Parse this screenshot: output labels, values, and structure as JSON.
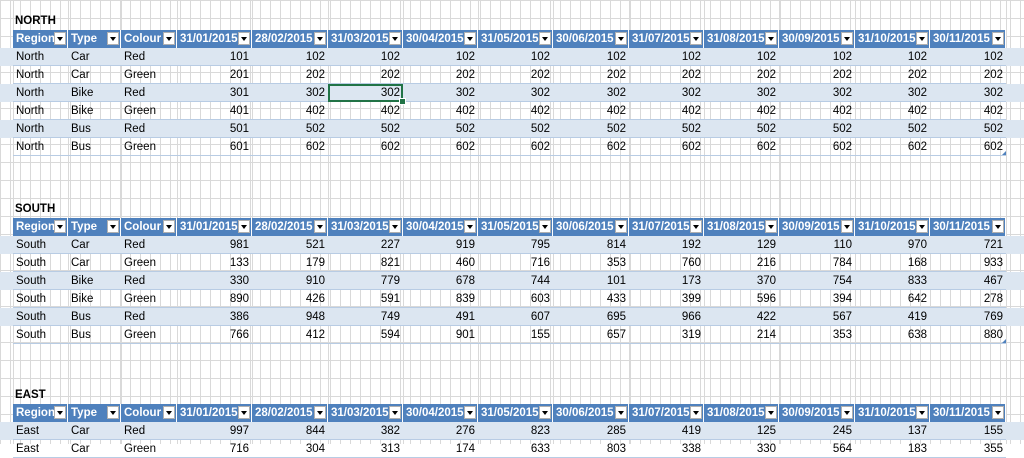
{
  "columns": {
    "region": "Region",
    "type": "Type",
    "colour": "Colour",
    "dates": [
      "31/01/2015",
      "28/02/2015",
      "31/03/2015",
      "30/04/2015",
      "31/05/2015",
      "30/06/2015",
      "31/07/2015",
      "31/08/2015",
      "30/09/2015",
      "31/10/2015",
      "30/11/2015"
    ]
  },
  "tables": [
    {
      "title": "NORTH",
      "rows": [
        {
          "region": "North",
          "type": "Car",
          "colour": "Red",
          "values": [
            101,
            102,
            102,
            102,
            102,
            102,
            102,
            102,
            102,
            102,
            102
          ]
        },
        {
          "region": "North",
          "type": "Car",
          "colour": "Green",
          "values": [
            201,
            202,
            202,
            202,
            202,
            202,
            202,
            202,
            202,
            202,
            202
          ]
        },
        {
          "region": "North",
          "type": "Bike",
          "colour": "Red",
          "values": [
            301,
            302,
            302,
            302,
            302,
            302,
            302,
            302,
            302,
            302,
            302
          ]
        },
        {
          "region": "North",
          "type": "Bike",
          "colour": "Green",
          "values": [
            401,
            402,
            402,
            402,
            402,
            402,
            402,
            402,
            402,
            402,
            402
          ]
        },
        {
          "region": "North",
          "type": "Bus",
          "colour": "Red",
          "values": [
            501,
            502,
            502,
            502,
            502,
            502,
            502,
            502,
            502,
            502,
            502
          ]
        },
        {
          "region": "North",
          "type": "Bus",
          "colour": "Green",
          "values": [
            601,
            602,
            602,
            602,
            602,
            602,
            602,
            602,
            602,
            602,
            602
          ]
        }
      ]
    },
    {
      "title": "SOUTH",
      "rows": [
        {
          "region": "South",
          "type": "Car",
          "colour": "Red",
          "values": [
            981,
            521,
            227,
            919,
            795,
            814,
            192,
            129,
            110,
            970,
            721
          ]
        },
        {
          "region": "South",
          "type": "Car",
          "colour": "Green",
          "values": [
            133,
            179,
            821,
            460,
            716,
            353,
            760,
            216,
            784,
            168,
            933
          ]
        },
        {
          "region": "South",
          "type": "Bike",
          "colour": "Red",
          "values": [
            330,
            910,
            779,
            678,
            744,
            101,
            173,
            370,
            754,
            833,
            467
          ]
        },
        {
          "region": "South",
          "type": "Bike",
          "colour": "Green",
          "values": [
            890,
            426,
            591,
            839,
            603,
            433,
            399,
            596,
            394,
            642,
            278
          ]
        },
        {
          "region": "South",
          "type": "Bus",
          "colour": "Red",
          "values": [
            386,
            948,
            749,
            491,
            607,
            695,
            966,
            422,
            567,
            419,
            769
          ]
        },
        {
          "region": "South",
          "type": "Bus",
          "colour": "Green",
          "values": [
            766,
            412,
            594,
            901,
            155,
            657,
            319,
            214,
            353,
            638,
            880
          ]
        }
      ]
    },
    {
      "title": "EAST",
      "rows": [
        {
          "region": "East",
          "type": "Car",
          "colour": "Red",
          "values": [
            997,
            844,
            382,
            276,
            823,
            285,
            419,
            125,
            245,
            137,
            155
          ]
        },
        {
          "region": "East",
          "type": "Car",
          "colour": "Green",
          "values": [
            716,
            304,
            313,
            174,
            633,
            803,
            338,
            330,
            564,
            183,
            355
          ]
        }
      ]
    }
  ]
}
